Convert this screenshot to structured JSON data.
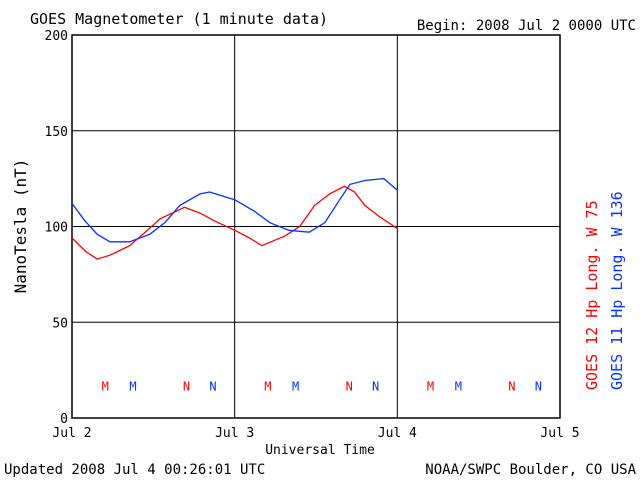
{
  "chart_data": {
    "type": "line",
    "title": "GOES Magnetometer (1 minute data)",
    "begin_label": "Begin:  2008 Jul 2 0000 UTC",
    "xlabel": "Universal Time",
    "ylabel": "NanoTesla (nT)",
    "xlim_hours": [
      0,
      72
    ],
    "ylim": [
      0,
      200
    ],
    "yticks": [
      0,
      50,
      100,
      150,
      200
    ],
    "xticks": [
      {
        "hour": 0,
        "label": "Jul 2"
      },
      {
        "hour": 24,
        "label": "Jul 3"
      },
      {
        "hour": 48,
        "label": "Jul 4"
      },
      {
        "hour": 72,
        "label": "Jul 5"
      }
    ],
    "grid": true,
    "series": [
      {
        "name": "GOES 12 Hp  Long. W 75",
        "color": "#ff0000",
        "x": [
          0,
          2,
          3.7,
          5.6,
          8.5,
          10.8,
          13,
          16.6,
          18.9,
          21,
          24,
          26.2,
          28,
          31.4,
          33.6,
          35.8,
          38,
          40.2,
          41.7,
          43.2,
          45.4,
          48
        ],
        "y": [
          94,
          87,
          83,
          85,
          90,
          97,
          104,
          110,
          107,
          103,
          98,
          94,
          90,
          95,
          100,
          111,
          117,
          121,
          118,
          111,
          105,
          99
        ]
      },
      {
        "name": "GOES 11 Hp  Long. W 136",
        "color": "#0033ff",
        "x": [
          0,
          1.9,
          3.7,
          5.6,
          8.5,
          11.5,
          13.7,
          15.9,
          18.9,
          20.3,
          24,
          26.9,
          29.2,
          32,
          35,
          37.3,
          39.5,
          41,
          43.2,
          46,
          48
        ],
        "y": [
          112,
          103,
          96,
          92,
          92,
          96,
          102,
          111,
          117,
          118,
          114,
          108,
          102,
          98,
          97,
          102,
          114,
          122,
          124,
          125,
          119
        ]
      }
    ],
    "markers": [
      {
        "label": "M",
        "color": "#ff0000",
        "hour": 4.9
      },
      {
        "label": "M",
        "color": "#0033ff",
        "hour": 9.0
      },
      {
        "label": "N",
        "color": "#ff0000",
        "hour": 16.9
      },
      {
        "label": "N",
        "color": "#0033ff",
        "hour": 20.8
      },
      {
        "label": "M",
        "color": "#ff0000",
        "hour": 28.9
      },
      {
        "label": "M",
        "color": "#0033ff",
        "hour": 33.0
      },
      {
        "label": "N",
        "color": "#ff0000",
        "hour": 40.9
      },
      {
        "label": "N",
        "color": "#0033ff",
        "hour": 44.8
      },
      {
        "label": "M",
        "color": "#ff0000",
        "hour": 52.9
      },
      {
        "label": "M",
        "color": "#0033ff",
        "hour": 57.0
      },
      {
        "label": "N",
        "color": "#ff0000",
        "hour": 64.9
      },
      {
        "label": "N",
        "color": "#0033ff",
        "hour": 68.8
      }
    ],
    "marker_level": 17
  },
  "footer": {
    "updated": "Updated 2008 Jul  4 00:26:01 UTC",
    "source": "NOAA/SWPC Boulder, CO USA"
  }
}
